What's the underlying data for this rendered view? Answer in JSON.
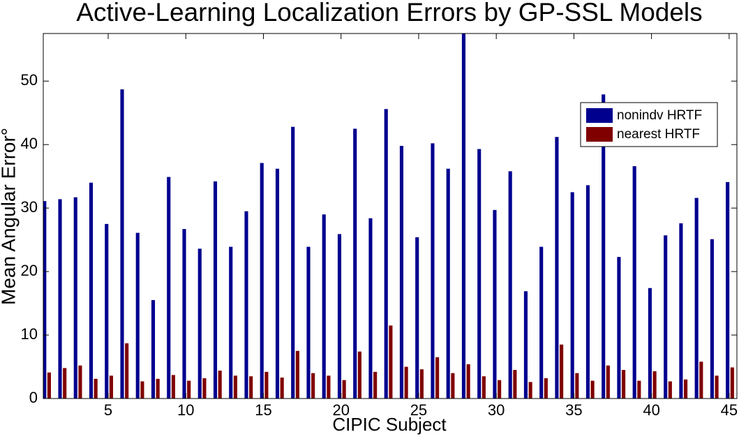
{
  "chart_data": {
    "type": "bar",
    "title": "Active-Learning Localization Errors by GP-SSL Models",
    "x_label": "CIPIC Subject",
    "y_label": "Mean Angular Error°",
    "x": [
      1,
      2,
      3,
      4,
      5,
      6,
      7,
      8,
      9,
      10,
      11,
      12,
      13,
      14,
      15,
      16,
      17,
      18,
      19,
      20,
      21,
      22,
      23,
      24,
      25,
      26,
      27,
      28,
      29,
      30,
      31,
      32,
      33,
      34,
      35,
      36,
      37,
      38,
      39,
      40,
      41,
      42,
      43,
      44,
      45
    ],
    "series": [
      {
        "name": "nonindv HRTF",
        "color": "#00008f",
        "values": [
          31.1,
          31.4,
          31.7,
          34,
          27.5,
          48.7,
          26.1,
          15.5,
          34.9,
          26.7,
          23.6,
          34.2,
          23.9,
          29.5,
          37.1,
          36.2,
          42.8,
          23.9,
          29,
          25.9,
          42.5,
          28.4,
          45.6,
          39.8,
          25.4,
          40.2,
          36.2,
          57.5,
          39.3,
          29.7,
          35.8,
          16.9,
          23.9,
          41.2,
          32.5,
          33.6,
          47.9,
          22.3,
          36.6,
          17.4,
          25.7,
          27.6,
          31.6,
          25.1,
          34.1
        ]
      },
      {
        "name": "nearest HRTF",
        "color": "#800000",
        "values": [
          4.1,
          4.8,
          5.2,
          3.1,
          3.6,
          8.7,
          2.7,
          3.1,
          3.7,
          2.8,
          3.2,
          4.4,
          3.6,
          3.5,
          4.2,
          3.3,
          7.5,
          4.0,
          3.6,
          2.9,
          7.4,
          4.2,
          11.5,
          5.0,
          4.6,
          6.5,
          4.0,
          5.4,
          3.5,
          2.9,
          4.5,
          2.6,
          3.2,
          8.5,
          4.0,
          2.8,
          5.2,
          4.5,
          2.8,
          4.3,
          2.7,
          3.0,
          5.8,
          3.6,
          4.9
        ]
      }
    ],
    "xlim": [
      0.82,
      45.5
    ],
    "xticks": [
      5,
      10,
      15,
      20,
      25,
      30,
      35,
      40,
      45
    ],
    "ylim": [
      0,
      57.5
    ],
    "yticks": [
      0,
      10,
      20,
      30,
      40,
      50
    ],
    "legend": "upper right",
    "grid": false
  }
}
